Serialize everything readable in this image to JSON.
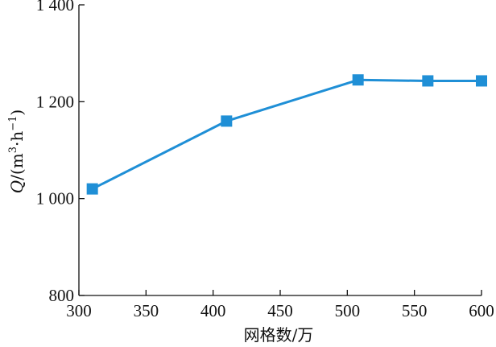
{
  "chart_data": {
    "type": "line",
    "title": "",
    "xlabel": "网格数/万",
    "ylabel_parts": {
      "symbol": "Q",
      "prefix": "/(m",
      "sup1": "3",
      "middle": "·h",
      "sup2": "−1",
      "suffix": ")"
    },
    "xlim": [
      300,
      600
    ],
    "ylim": [
      800,
      1400
    ],
    "x_ticks": [
      300,
      350,
      400,
      450,
      500,
      550,
      600
    ],
    "y_ticks": [
      800,
      1000,
      1200,
      1400
    ],
    "y_tick_labels": [
      "800",
      "1 000",
      "1 200",
      "1 400"
    ],
    "grid": false,
    "series": [
      {
        "x": [
          310,
          410,
          508,
          560,
          600
        ],
        "y": [
          1020,
          1160,
          1245,
          1243,
          1243
        ],
        "color": "#1f8fd6",
        "marker": "square"
      }
    ]
  }
}
